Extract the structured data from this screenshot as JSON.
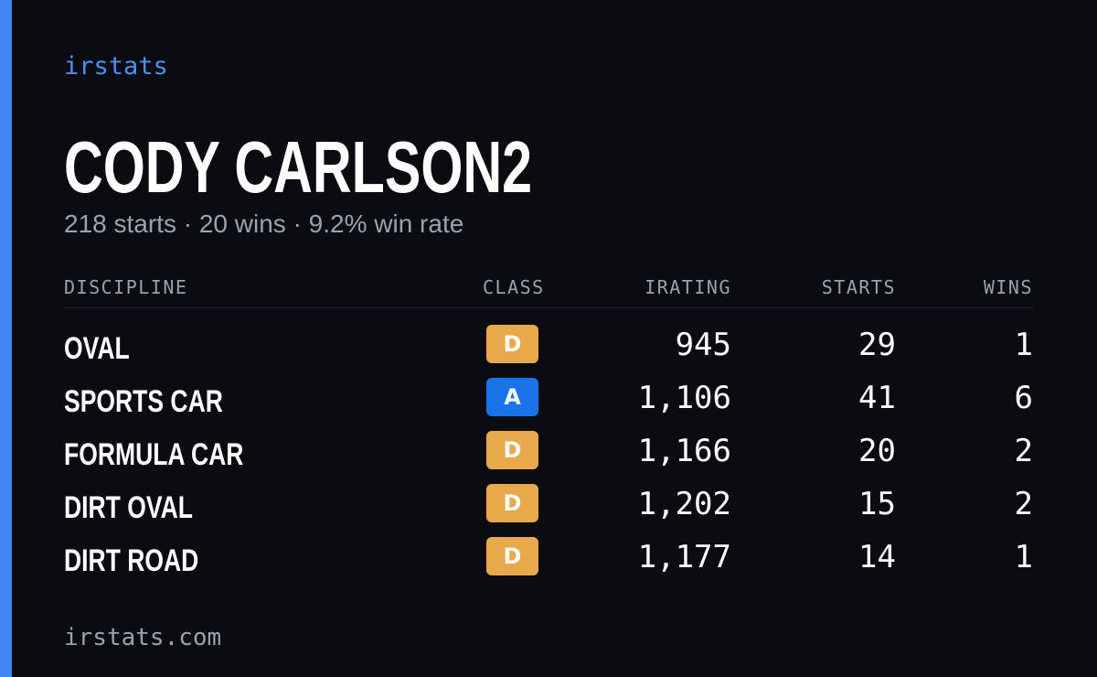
{
  "brand": "irstats",
  "driver": {
    "name": "CODY CARLSON2",
    "summary": "218 starts · 20 wins · 9.2% win rate"
  },
  "table": {
    "headers": {
      "discipline": "DISCIPLINE",
      "class": "CLASS",
      "irating": "IRATING",
      "starts": "STARTS",
      "wins": "WINS"
    },
    "rows": [
      {
        "discipline": "OVAL",
        "class": "D",
        "class_color": "#e8a94a",
        "irating": "945",
        "starts": "29",
        "wins": "1"
      },
      {
        "discipline": "SPORTS CAR",
        "class": "A",
        "class_color": "#1a73e8",
        "irating": "1,106",
        "starts": "41",
        "wins": "6"
      },
      {
        "discipline": "FORMULA CAR",
        "class": "D",
        "class_color": "#e8a94a",
        "irating": "1,166",
        "starts": "20",
        "wins": "2"
      },
      {
        "discipline": "DIRT OVAL",
        "class": "D",
        "class_color": "#e8a94a",
        "irating": "1,202",
        "starts": "15",
        "wins": "2"
      },
      {
        "discipline": "DIRT ROAD",
        "class": "D",
        "class_color": "#e8a94a",
        "irating": "1,177",
        "starts": "14",
        "wins": "1"
      }
    ]
  },
  "footer": {
    "url": "irstats.com"
  },
  "colors": {
    "accent": "#4285f4",
    "background": "#0a0c12",
    "muted_text": "#9aa2b1"
  }
}
